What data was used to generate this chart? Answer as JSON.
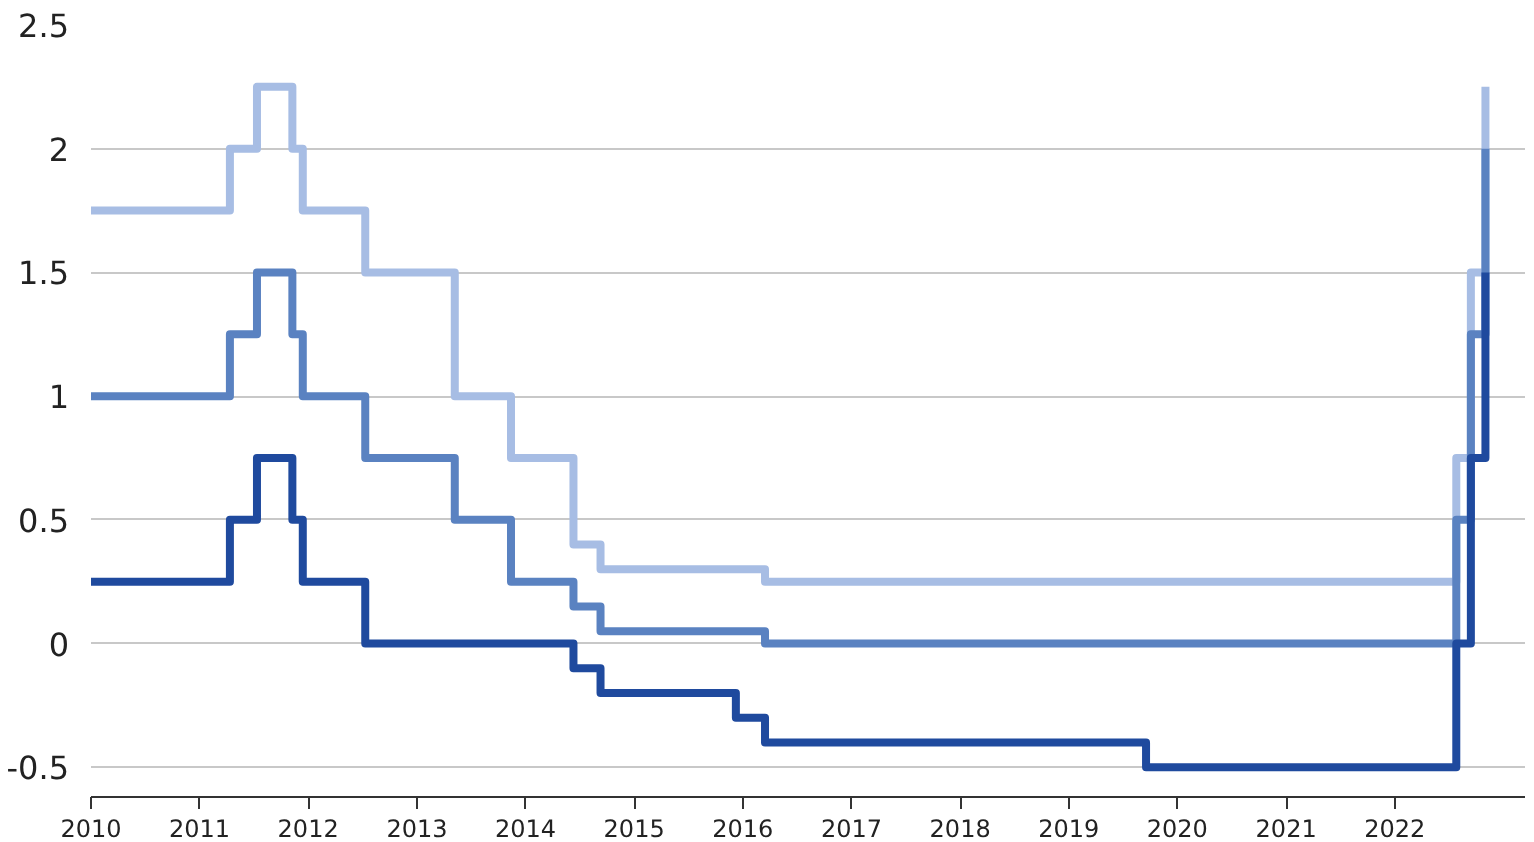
{
  "chart_data": {
    "type": "step",
    "xlim": [
      "2010-01-01",
      "2023-03-15"
    ],
    "xticks": [
      "2010",
      "2011",
      "2012",
      "2013",
      "2014",
      "2015",
      "2016",
      "2017",
      "2018",
      "2019",
      "2020",
      "2021",
      "2022"
    ],
    "ylim": [
      -0.62,
      2.5
    ],
    "yticks": [
      -0.5,
      0,
      0.5,
      1,
      1.5,
      2,
      2.5
    ],
    "grid": "y",
    "line_style": "solid",
    "series": [
      {
        "color": "#a7bde4",
        "x": [
          "2010-01-01",
          "2011-04-13",
          "2011-07-13",
          "2011-11-09",
          "2011-12-14",
          "2012-07-11",
          "2013-05-08",
          "2013-11-13",
          "2014-06-11",
          "2014-09-10",
          "2016-03-16",
          "2022-07-27",
          "2022-09-14",
          "2022-11-02"
        ],
        "values": [
          1.75,
          2.0,
          2.25,
          2.0,
          1.75,
          1.5,
          1.0,
          0.75,
          0.4,
          0.3,
          0.25,
          0.75,
          1.5,
          2.25
        ]
      },
      {
        "color": "#5a82c1",
        "x": [
          "2010-01-01",
          "2011-04-13",
          "2011-07-13",
          "2011-11-09",
          "2011-12-14",
          "2012-07-11",
          "2013-05-08",
          "2013-11-13",
          "2014-06-11",
          "2014-09-10",
          "2016-03-16",
          "2022-07-27",
          "2022-09-14",
          "2022-11-02"
        ],
        "values": [
          1.0,
          1.25,
          1.5,
          1.25,
          1.0,
          0.75,
          0.5,
          0.25,
          0.15,
          0.05,
          0.0,
          0.5,
          1.25,
          2.0
        ]
      },
      {
        "color": "#1f4a9e",
        "x": [
          "2010-01-01",
          "2011-04-13",
          "2011-07-13",
          "2011-11-09",
          "2011-12-14",
          "2012-07-11",
          "2014-06-11",
          "2014-09-10",
          "2015-12-09",
          "2016-03-16",
          "2019-09-18",
          "2022-07-27",
          "2022-09-14",
          "2022-11-02"
        ],
        "values": [
          0.25,
          0.5,
          0.75,
          0.5,
          0.25,
          0.0,
          -0.1,
          -0.2,
          -0.3,
          -0.4,
          -0.5,
          0.0,
          0.75,
          1.5
        ]
      }
    ]
  }
}
